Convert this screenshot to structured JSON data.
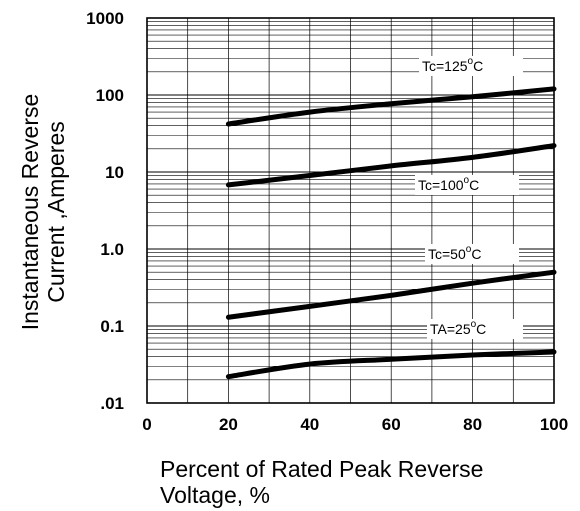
{
  "chart_data": {
    "type": "line",
    "xlabel_line1": "Percent of Rated Peak Reverse",
    "xlabel_line2": "Voltage, %",
    "ylabel_line1": "Instantaneous Reverse",
    "ylabel_line2": "Current ,Amperes",
    "x_scale": "linear",
    "y_scale": "log",
    "xlim": [
      0,
      100
    ],
    "ylim": [
      0.01,
      1000
    ],
    "x_ticks": [
      "0",
      "20",
      "40",
      "60",
      "80",
      "100"
    ],
    "y_ticks": [
      {
        "value": 1000,
        "label": "1000"
      },
      {
        "value": 100,
        "label": "100"
      },
      {
        "value": 10,
        "label": "10"
      },
      {
        "value": 1,
        "label": "1.0"
      },
      {
        "value": 0.1,
        "label": "0.1"
      },
      {
        "value": 0.01,
        "label": ".01"
      }
    ],
    "grid": true,
    "series": [
      {
        "name": "Tc=125°C",
        "label_main": "Tc=125",
        "label_deg": "o",
        "label_unit": "C",
        "x": [
          20,
          40,
          60,
          80,
          100
        ],
        "y": [
          42,
          60,
          77,
          95,
          120
        ]
      },
      {
        "name": "Tc=100°C",
        "label_main": "Tc=100",
        "label_deg": "o",
        "label_unit": "C",
        "x": [
          20,
          40,
          60,
          80,
          100
        ],
        "y": [
          6.8,
          9,
          12,
          15.5,
          22
        ]
      },
      {
        "name": "Tc=50°C",
        "label_main": "Tc=50",
        "label_deg": "o",
        "label_unit": "C",
        "x": [
          20,
          40,
          60,
          80,
          100
        ],
        "y": [
          0.13,
          0.18,
          0.25,
          0.36,
          0.5
        ]
      },
      {
        "name": "TA=25°C",
        "label_main": "TA=25",
        "label_deg": "o",
        "label_unit": "C",
        "x": [
          20,
          40,
          60,
          80,
          100
        ],
        "y": [
          0.022,
          0.032,
          0.037,
          0.042,
          0.046
        ]
      }
    ]
  }
}
